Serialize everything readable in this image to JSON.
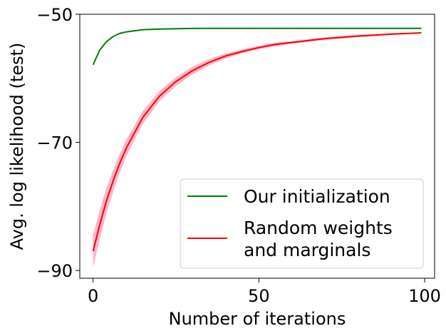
{
  "chart_data": {
    "type": "line",
    "title": "",
    "xlabel": "Number of iterations",
    "ylabel": "Avg. log likelihood (test)",
    "xlim": [
      -4,
      103
    ],
    "ylim": [
      -91.2,
      -50
    ],
    "xticks": [
      0,
      50,
      100
    ],
    "xtick_labels": [
      "0",
      "50",
      "100"
    ],
    "yticks": [
      -50,
      -70,
      -90
    ],
    "ytick_labels": [
      "−50",
      "−70",
      "−90"
    ],
    "grid": false,
    "legend_position": "lower-right",
    "x": [
      0,
      2,
      4,
      6,
      8,
      10,
      15,
      20,
      25,
      30,
      35,
      40,
      45,
      50,
      55,
      60,
      65,
      70,
      75,
      80,
      85,
      90,
      95,
      99
    ],
    "series": [
      {
        "name": "Our initialization",
        "legend_lines": [
          "Our initialization"
        ],
        "color": "#008000",
        "values": [
          -57.9,
          -55.6,
          -54.3,
          -53.5,
          -53.0,
          -52.75,
          -52.4,
          -52.3,
          -52.25,
          -52.22,
          -52.21,
          -52.2,
          -52.2,
          -52.2,
          -52.2,
          -52.2,
          -52.2,
          -52.2,
          -52.2,
          -52.2,
          -52.2,
          -52.2,
          -52.2,
          -52.2
        ]
      },
      {
        "name": "Random weights and marginals",
        "legend_lines": [
          "Random weights",
          "and marginals"
        ],
        "color": "#ff0000",
        "band_color": "#ffb6c8",
        "values": [
          -87.0,
          -82.9,
          -79.2,
          -76.1,
          -73.3,
          -70.9,
          -66.1,
          -62.8,
          -60.5,
          -58.8,
          -57.5,
          -56.5,
          -55.8,
          -55.2,
          -54.7,
          -54.4,
          -54.1,
          -53.8,
          -53.6,
          -53.4,
          -53.25,
          -53.1,
          -53.0,
          -52.9
        ],
        "lower": [
          -89.6,
          -85.2,
          -81.2,
          -77.8,
          -74.8,
          -72.2,
          -67.1,
          -63.6,
          -61.2,
          -59.4,
          -58.0,
          -56.9,
          -56.1,
          -55.5,
          -55.0,
          -54.6,
          -54.3,
          -54.0,
          -53.8,
          -53.6,
          -53.4,
          -53.25,
          -53.1,
          -53.0
        ],
        "upper": [
          -84.4,
          -80.6,
          -77.2,
          -74.4,
          -71.8,
          -69.6,
          -65.1,
          -62.0,
          -59.8,
          -58.2,
          -57.0,
          -56.1,
          -55.5,
          -54.9,
          -54.4,
          -54.2,
          -53.9,
          -53.6,
          -53.4,
          -53.2,
          -53.1,
          -52.95,
          -52.9,
          -52.8
        ]
      }
    ]
  }
}
